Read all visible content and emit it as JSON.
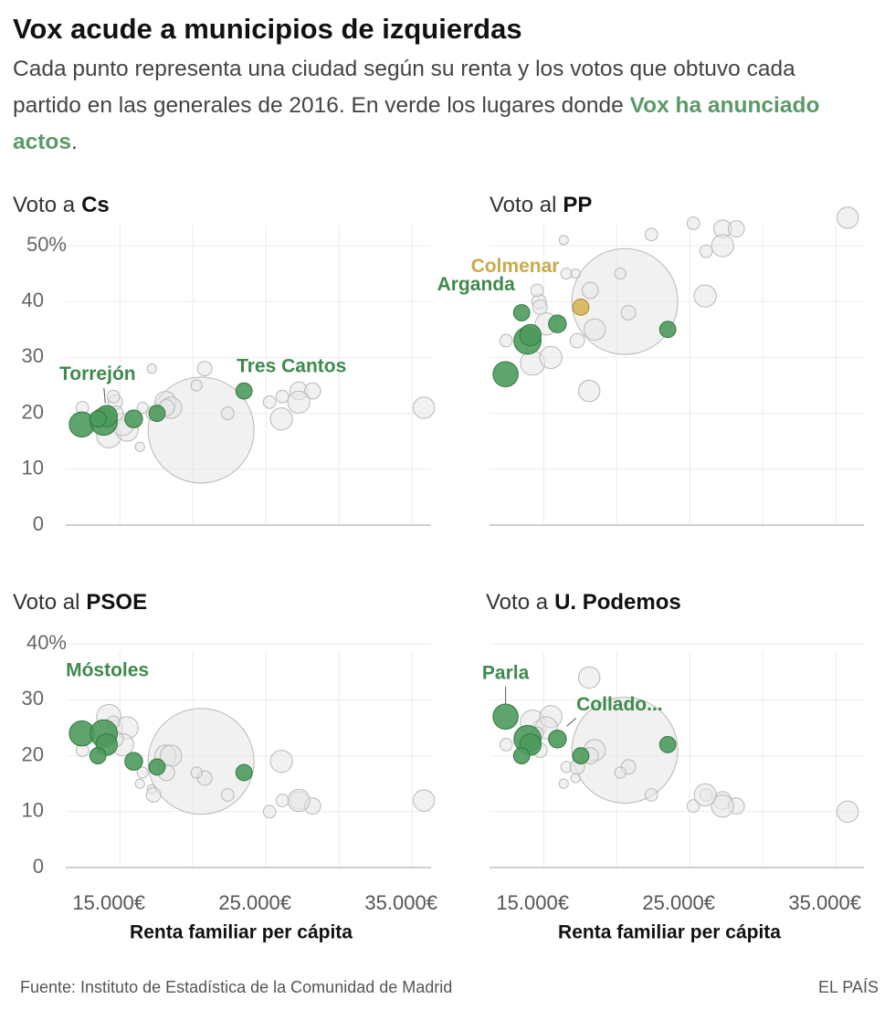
{
  "title": "Vox acude a municipios de izquierdas",
  "subtitle": [
    "Cada punto representa una ciudad según su renta y los votos que obtuvo cada partido en las generales de 2016. En verde los lugares donde",
    "Vox ha anunciado actos",
    "."
  ],
  "source": "Fuente: Instituto de Estadística de la Comunidad de Madrid",
  "credit": "EL PAÍS",
  "chart_data": [
    {
      "type": "bubble",
      "title": [
        "Voto a",
        "Cs"
      ],
      "x": [
        20560,
        35810,
        27250,
        28190,
        27250,
        25250,
        26125,
        26060,
        22380,
        20810,
        20250,
        18125,
        18500,
        16375,
        16560,
        17190,
        14690,
        14250,
        15500,
        12440,
        15190,
        14750,
        17310,
        14560,
        18190,
        12400,
        13900,
        14100,
        13500,
        15950,
        17550,
        23500
      ],
      "values": [
        17,
        21,
        24,
        24,
        22,
        22,
        23,
        19,
        20,
        28,
        25,
        22,
        21,
        14,
        21,
        28,
        22,
        16,
        17,
        21,
        18,
        20,
        20,
        23,
        21,
        18,
        18.5,
        19.5,
        19,
        19,
        20,
        24
      ],
      "sizes": [
        3200,
        130,
        90,
        75,
        140,
        45,
        45,
        140,
        45,
        60,
        35,
        130,
        130,
        25,
        35,
        25,
        60,
        170,
        140,
        45,
        140,
        60,
        60,
        45,
        75,
        180,
        210,
        130,
        75,
        90,
        75,
        75
      ],
      "colors": [
        "#e6e6e6",
        "#e6e6e6",
        "#e6e6e6",
        "#e6e6e6",
        "#e6e6e6",
        "#e6e6e6",
        "#e6e6e6",
        "#e6e6e6",
        "#e6e6e6",
        "#e6e6e6",
        "#e6e6e6",
        "#e6e6e6",
        "#e6e6e6",
        "#e6e6e6",
        "#e6e6e6",
        "#e6e6e6",
        "#e6e6e6",
        "#e6e6e6",
        "#e6e6e6",
        "#e6e6e6",
        "#e6e6e6",
        "#e6e6e6",
        "#e6e6e6",
        "#e6e6e6",
        "#e6e6e6",
        "#4d9a5c",
        "#4d9a5c",
        "#4d9a5c",
        "#4d9a5c",
        "#4d9a5c",
        "#4d9a5c",
        "#4d9a5c"
      ],
      "annotations": [
        {
          "text": "Torrejón",
          "point": 27,
          "color": "#3d8a4c"
        },
        {
          "text": "Tres Cantos",
          "point": 31,
          "color": "#3d8a4c"
        }
      ],
      "xlim": [
        11300,
        36500
      ],
      "xticks": [
        15000,
        20000,
        25000,
        30000,
        35000
      ],
      "xtick_labels": false,
      "ylim": [
        0,
        57
      ],
      "yticks": [
        0,
        10,
        20,
        30,
        40,
        {
          "value": 50,
          "label": "50%"
        }
      ],
      "ytick_labels": true,
      "grid": true
    },
    {
      "type": "bubble",
      "title": [
        "Voto al",
        "PP"
      ],
      "x": [
        20560,
        35810,
        27250,
        28190,
        27250,
        25250,
        26125,
        26060,
        22380,
        20810,
        20250,
        18125,
        18500,
        16375,
        16560,
        17190,
        14690,
        14250,
        15500,
        12440,
        15190,
        14750,
        17310,
        14560,
        18190,
        12400,
        13900,
        14100,
        13500,
        15950,
        17550,
        23500
      ],
      "values": [
        40,
        55,
        53,
        53,
        50,
        54,
        49,
        41,
        52,
        38,
        45,
        24,
        35,
        51,
        45,
        45,
        40,
        29,
        30,
        33,
        36,
        39,
        33,
        42,
        42,
        27,
        33,
        34,
        38,
        36,
        39,
        35
      ],
      "sizes": [
        3200,
        130,
        90,
        75,
        140,
        45,
        45,
        140,
        45,
        60,
        35,
        130,
        130,
        25,
        35,
        25,
        60,
        170,
        140,
        45,
        140,
        60,
        60,
        45,
        75,
        180,
        210,
        130,
        75,
        90,
        75,
        75
      ],
      "colors": [
        "#e6e6e6",
        "#e6e6e6",
        "#e6e6e6",
        "#e6e6e6",
        "#e6e6e6",
        "#e6e6e6",
        "#e6e6e6",
        "#e6e6e6",
        "#e6e6e6",
        "#e6e6e6",
        "#e6e6e6",
        "#e6e6e6",
        "#e6e6e6",
        "#e6e6e6",
        "#e6e6e6",
        "#e6e6e6",
        "#e6e6e6",
        "#e6e6e6",
        "#e6e6e6",
        "#e6e6e6",
        "#e6e6e6",
        "#e6e6e6",
        "#e6e6e6",
        "#e6e6e6",
        "#e6e6e6",
        "#4d9a5c",
        "#4d9a5c",
        "#4d9a5c",
        "#4d9a5c",
        "#4d9a5c",
        "#d6b656",
        "#4d9a5c"
      ],
      "annotations": [
        {
          "text": "Colmenar",
          "point": 30,
          "color": "#c9a94a"
        },
        {
          "text": "Arganda",
          "point": 28,
          "color": "#3d8a4c"
        }
      ],
      "xlim": [
        11300,
        36500
      ],
      "xticks": [
        15000,
        20000,
        25000,
        30000,
        35000
      ],
      "xtick_labels": false,
      "ylim": [
        0,
        57
      ],
      "yticks": [
        0,
        10,
        20,
        30,
        40,
        50
      ],
      "ytick_labels": false,
      "grid": true
    },
    {
      "type": "bubble",
      "title": [
        "Voto al",
        "PSOE"
      ],
      "x": [
        20560,
        35810,
        27250,
        28190,
        27250,
        25250,
        26125,
        26060,
        22380,
        20810,
        20250,
        18125,
        18500,
        16375,
        16560,
        17190,
        14690,
        14250,
        15500,
        12440,
        15190,
        14750,
        17310,
        14560,
        18190,
        12400,
        13900,
        14100,
        13500,
        15950,
        17550,
        23500
      ],
      "values": [
        19,
        12,
        12,
        11,
        12,
        10,
        12,
        19,
        13,
        16,
        17,
        20,
        20,
        15,
        17,
        14,
        25,
        27,
        25,
        21,
        22,
        23,
        13,
        26,
        17,
        24,
        24,
        22,
        20,
        19,
        18,
        17
      ],
      "sizes": [
        3200,
        130,
        90,
        75,
        140,
        45,
        45,
        140,
        45,
        60,
        35,
        130,
        130,
        25,
        35,
        25,
        60,
        170,
        140,
        45,
        140,
        60,
        60,
        45,
        75,
        180,
        210,
        130,
        75,
        90,
        75,
        75
      ],
      "colors": [
        "#e6e6e6",
        "#e6e6e6",
        "#e6e6e6",
        "#e6e6e6",
        "#e6e6e6",
        "#e6e6e6",
        "#e6e6e6",
        "#e6e6e6",
        "#e6e6e6",
        "#e6e6e6",
        "#e6e6e6",
        "#e6e6e6",
        "#e6e6e6",
        "#e6e6e6",
        "#e6e6e6",
        "#e6e6e6",
        "#e6e6e6",
        "#e6e6e6",
        "#e6e6e6",
        "#e6e6e6",
        "#e6e6e6",
        "#e6e6e6",
        "#e6e6e6",
        "#e6e6e6",
        "#e6e6e6",
        "#4d9a5c",
        "#4d9a5c",
        "#4d9a5c",
        "#4d9a5c",
        "#4d9a5c",
        "#4d9a5c",
        "#4d9a5c"
      ],
      "annotations": [
        {
          "text": "Móstoles",
          "point": 26,
          "color": "#3d8a4c"
        }
      ],
      "xlim": [
        11300,
        36500
      ],
      "xticks": [
        {
          "value": 15000,
          "label": "15.000€"
        },
        {
          "value": 20000,
          "label": null
        },
        {
          "value": 25000,
          "label": "25.000€"
        },
        {
          "value": 30000,
          "label": null
        },
        {
          "value": 35000,
          "label": "35.000€"
        }
      ],
      "xtick_labels": true,
      "xlabel": "Renta familiar per cápita",
      "ylim": [
        0,
        42
      ],
      "yticks": [
        0,
        10,
        20,
        30,
        {
          "value": 40,
          "label": "40%"
        }
      ],
      "ytick_labels": true,
      "grid": true
    },
    {
      "type": "bubble",
      "title": [
        "Voto a",
        "U. Podemos"
      ],
      "x": [
        20560,
        35810,
        27250,
        28190,
        27250,
        25250,
        26125,
        26060,
        22380,
        20810,
        20250,
        18125,
        18500,
        16375,
        16560,
        17190,
        14690,
        14250,
        15500,
        12440,
        15190,
        14750,
        17310,
        14560,
        18190,
        12400,
        13900,
        14100,
        13500,
        15950,
        17550,
        23500
      ],
      "values": [
        21,
        10,
        12,
        11,
        11,
        11,
        13,
        13,
        13,
        18,
        17,
        34,
        21,
        15,
        18,
        16,
        25,
        26,
        27,
        22,
        25,
        21,
        18,
        24,
        20,
        27,
        23,
        22,
        20,
        23,
        20,
        22
      ],
      "sizes": [
        3200,
        130,
        90,
        75,
        140,
        45,
        45,
        140,
        45,
        60,
        35,
        130,
        130,
        25,
        35,
        25,
        60,
        170,
        140,
        45,
        140,
        60,
        60,
        45,
        75,
        180,
        210,
        130,
        75,
        90,
        75,
        75
      ],
      "colors": [
        "#e6e6e6",
        "#e6e6e6",
        "#e6e6e6",
        "#e6e6e6",
        "#e6e6e6",
        "#e6e6e6",
        "#e6e6e6",
        "#e6e6e6",
        "#e6e6e6",
        "#e6e6e6",
        "#e6e6e6",
        "#e6e6e6",
        "#e6e6e6",
        "#e6e6e6",
        "#e6e6e6",
        "#e6e6e6",
        "#e6e6e6",
        "#e6e6e6",
        "#e6e6e6",
        "#e6e6e6",
        "#e6e6e6",
        "#e6e6e6",
        "#e6e6e6",
        "#e6e6e6",
        "#e6e6e6",
        "#4d9a5c",
        "#4d9a5c",
        "#4d9a5c",
        "#4d9a5c",
        "#4d9a5c",
        "#4d9a5c",
        "#4d9a5c"
      ],
      "annotations": [
        {
          "text": "Parla",
          "point": 25,
          "color": "#3d8a4c"
        },
        {
          "text": "Collado...",
          "point": 29,
          "color": "#3d8a4c"
        }
      ],
      "xlim": [
        11300,
        36500
      ],
      "xticks": [
        {
          "value": 15000,
          "label": "15.000€"
        },
        {
          "value": 20000,
          "label": null
        },
        {
          "value": 25000,
          "label": "25.000€"
        },
        {
          "value": 30000,
          "label": null
        },
        {
          "value": 35000,
          "label": "35.000€"
        }
      ],
      "xtick_labels": true,
      "xlabel": "Renta familiar per cápita",
      "ylim": [
        0,
        42
      ],
      "yticks": [
        0,
        10,
        20,
        30,
        40
      ],
      "ytick_labels": false,
      "grid": true
    }
  ]
}
